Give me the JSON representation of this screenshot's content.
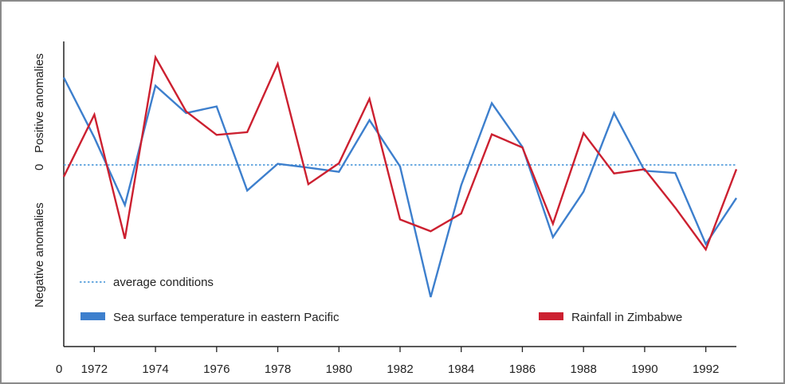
{
  "chart_data": {
    "type": "line",
    "title": "",
    "xlabel": "",
    "y_labels": {
      "positive": "Positive anomalies",
      "zero": "0",
      "negative": "Negative anomalies"
    },
    "x_origin_label": "0",
    "xlim": [
      1971,
      1993
    ],
    "ylim": [
      -2.6,
      2.1
    ],
    "x_ticks": [
      1972,
      1974,
      1976,
      1978,
      1980,
      1982,
      1984,
      1986,
      1988,
      1990,
      1992
    ],
    "x": [
      1971,
      1972,
      1973,
      1974,
      1975,
      1976,
      1977,
      1978,
      1979,
      1980,
      1981,
      1982,
      1983,
      1984,
      1985,
      1986,
      1987,
      1988,
      1989,
      1990,
      1991,
      1992,
      1993
    ],
    "baseline": {
      "label": "average conditions",
      "value": 0,
      "color": "#3c8fd6"
    },
    "series": [
      {
        "name": "Sea surface temperature in eastern Pacific",
        "color": "#3d7fcd",
        "values": [
          1.6,
          0.5,
          -0.75,
          1.45,
          0.95,
          1.07,
          -0.48,
          0.02,
          -0.05,
          -0.13,
          0.82,
          -0.03,
          -2.47,
          -0.38,
          1.13,
          0.33,
          -1.35,
          -0.5,
          0.95,
          -0.11,
          -0.15,
          -1.48,
          -0.62
        ]
      },
      {
        "name": "Rainfall in Zimbabwe",
        "color": "#cc2030",
        "values": [
          -0.22,
          0.92,
          -1.38,
          1.97,
          0.98,
          0.55,
          0.6,
          1.85,
          -0.36,
          0.03,
          1.21,
          -1.02,
          -1.24,
          -0.91,
          0.56,
          0.32,
          -1.1,
          0.58,
          -0.16,
          -0.08,
          -0.8,
          -1.58,
          -0.08
        ]
      }
    ],
    "legend_placement": "bottom"
  }
}
